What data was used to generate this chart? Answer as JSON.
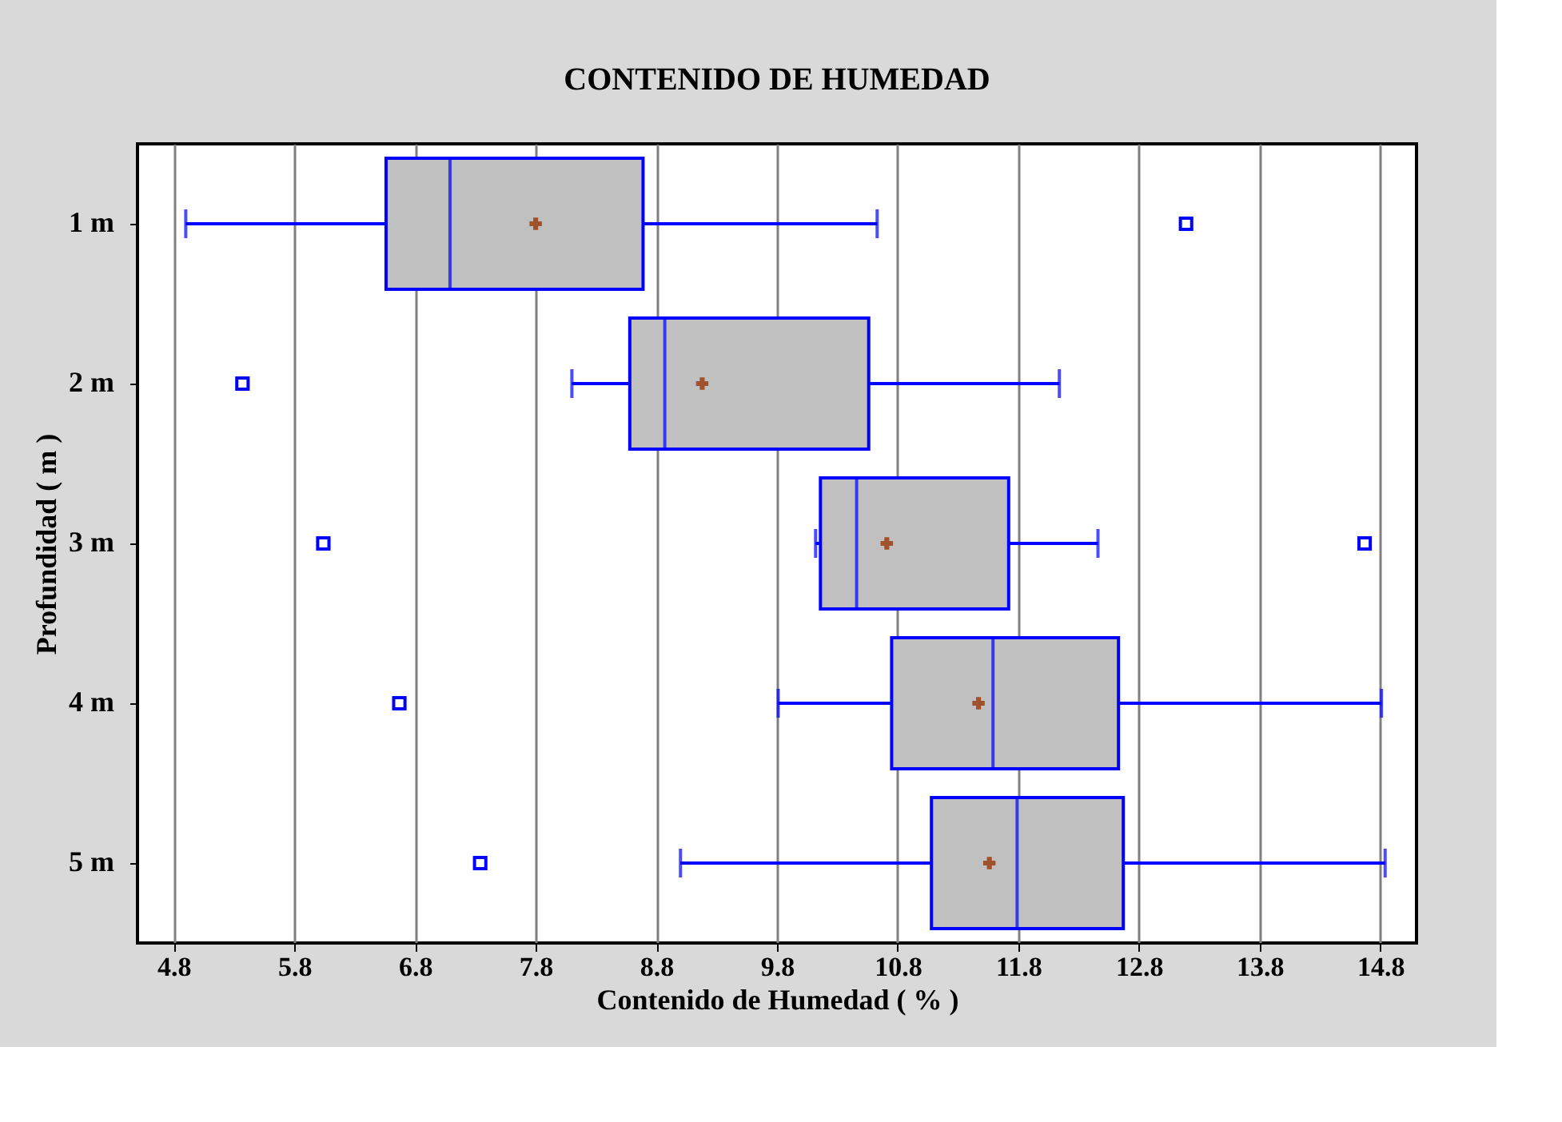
{
  "chart_data": {
    "type": "box",
    "orientation": "horizontal",
    "title": "CONTENIDO DE HUMEDAD",
    "xlabel": "Contenido de Humedad ( %  )",
    "ylabel": "Profundidad ( m )",
    "categories": [
      "1 m",
      "2 m",
      "3 m",
      "4 m",
      "5 m"
    ],
    "boxes": [
      {
        "low": 4.9,
        "q1": 6.56,
        "median": 7.09,
        "q3": 8.69,
        "high": 10.63,
        "mean": 7.8,
        "outliers": [
          13.19
        ]
      },
      {
        "low": 8.1,
        "q1": 8.58,
        "median": 8.87,
        "q3": 10.56,
        "high": 12.14,
        "mean": 9.18,
        "outliers": [
          5.37
        ]
      },
      {
        "low": 10.12,
        "q1": 10.16,
        "median": 10.46,
        "q3": 11.72,
        "high": 12.46,
        "mean": 10.71,
        "outliers": [
          6.04,
          14.67
        ]
      },
      {
        "low": 9.81,
        "q1": 10.75,
        "median": 11.59,
        "q3": 12.63,
        "high": 14.81,
        "mean": 11.47,
        "outliers": [
          6.67
        ]
      },
      {
        "low": 9.0,
        "q1": 11.08,
        "median": 11.79,
        "q3": 12.67,
        "high": 14.84,
        "mean": 11.56,
        "outliers": [
          7.34
        ]
      }
    ],
    "color": "#c0c0c0",
    "xlim": [
      4.5,
      15.1
    ],
    "xticks": [
      4.8,
      5.8,
      6.8,
      7.8,
      8.8,
      9.8,
      10.8,
      11.8,
      12.8,
      13.8,
      14.8
    ],
    "grid": "x"
  }
}
